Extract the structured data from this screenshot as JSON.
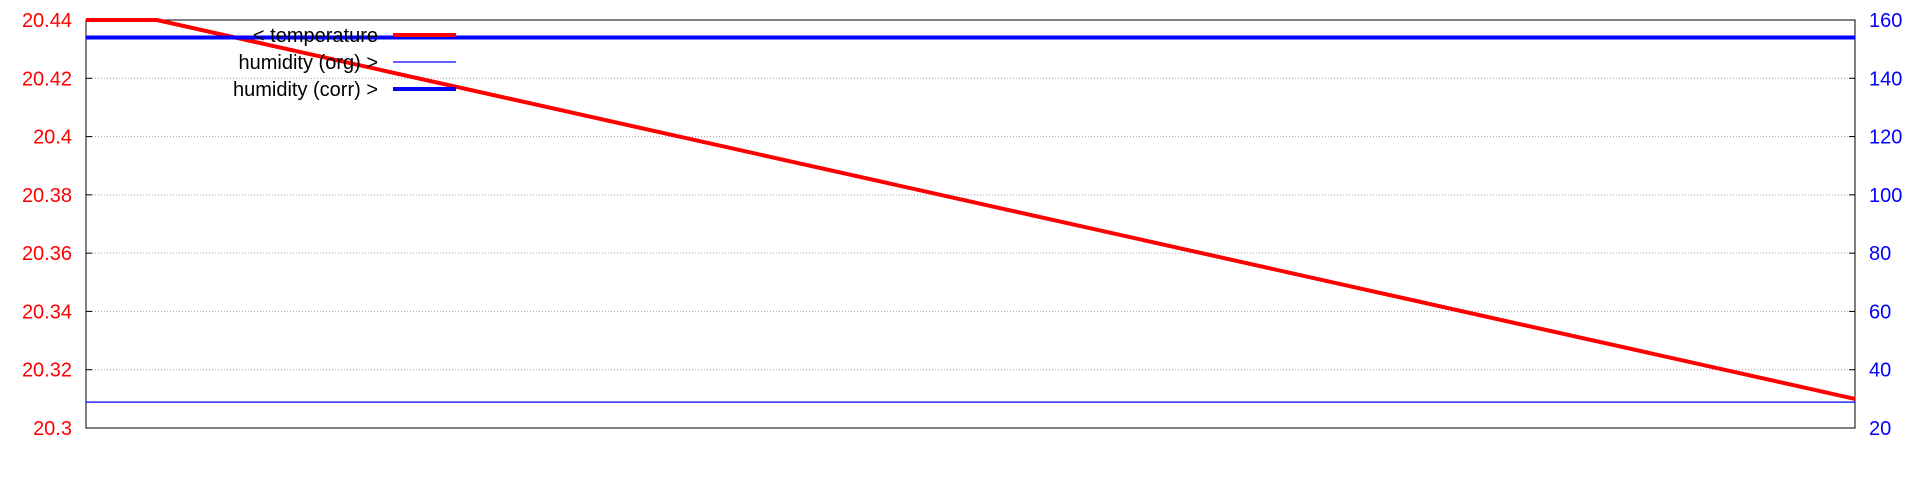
{
  "chart_data": {
    "type": "line",
    "title": "",
    "xlabel": "",
    "grid": true,
    "legend_position": "top-left",
    "left_axis": {
      "label": "",
      "color": "#ff0000",
      "ylim": [
        20.3,
        20.44
      ],
      "ticks": [
        20.3,
        20.32,
        20.34,
        20.36,
        20.38,
        20.4,
        20.42,
        20.44
      ],
      "tick_labels": [
        "20.3",
        "20.32",
        "20.34",
        "20.36",
        "20.38",
        "20.4",
        "20.42",
        "20.44"
      ]
    },
    "right_axis": {
      "label": "",
      "color": "#0000ff",
      "ylim": [
        20,
        160
      ],
      "ticks": [
        20,
        40,
        60,
        80,
        100,
        120,
        140,
        160
      ],
      "tick_labels": [
        "20",
        "40",
        "60",
        "80",
        "100",
        "120",
        "140",
        "160"
      ]
    },
    "xlim": [
      0,
      1
    ],
    "series": [
      {
        "name": "< temperature",
        "axis": "left",
        "color": "#ff0000",
        "line": "thick",
        "x": [
          0,
          0.04,
          1
        ],
        "y": [
          20.44,
          20.44,
          20.31
        ]
      },
      {
        "name": "humidity (org) >",
        "axis": "right",
        "color": "#0000ff",
        "line": "thin",
        "x": [
          0,
          1
        ],
        "y": [
          28.9,
          28.9
        ]
      },
      {
        "name": "humidity (corr) >",
        "axis": "right",
        "color": "#0000ff",
        "line": "thick",
        "x": [
          0,
          1
        ],
        "y": [
          154,
          154
        ]
      }
    ]
  }
}
